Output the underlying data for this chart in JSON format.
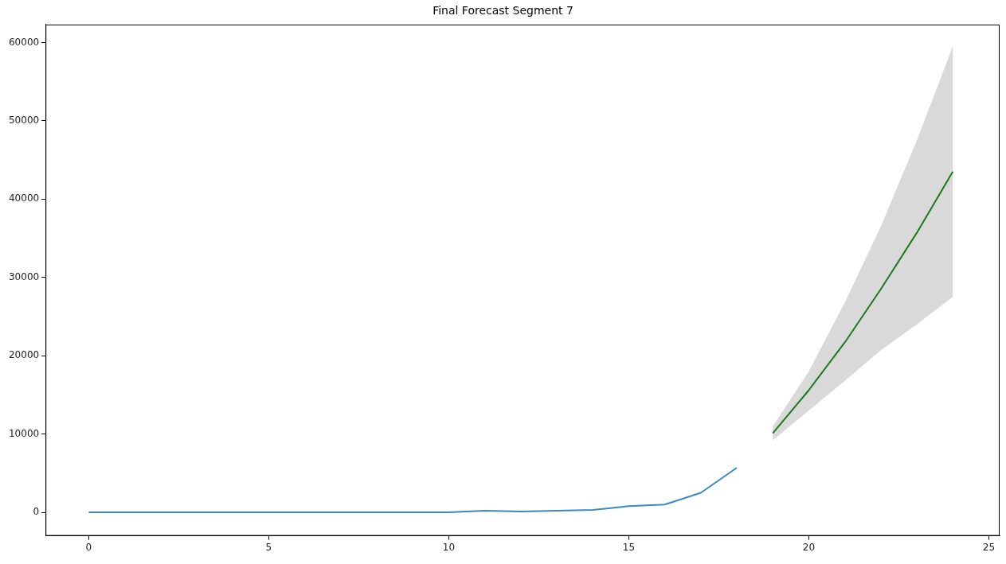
{
  "chart_data": {
    "type": "line",
    "title": "Final Forecast Segment 7",
    "series": [
      {
        "color": "#3a89c2",
        "x": [
          0,
          1,
          2,
          3,
          4,
          5,
          6,
          7,
          8,
          9,
          10,
          11,
          12,
          13,
          14,
          15,
          16,
          17,
          18
        ],
        "values": [
          0,
          0,
          0,
          0,
          0,
          0,
          0,
          0,
          0,
          0,
          0,
          200,
          100,
          200,
          300,
          800,
          1000,
          2500,
          5700
        ]
      },
      {
        "color": "#1a7a1a",
        "x": [
          19,
          20,
          21,
          22,
          23,
          24
        ],
        "values": [
          10100,
          15600,
          21700,
          28500,
          35700,
          43500
        ],
        "lower": [
          9200,
          13000,
          16800,
          20700,
          24000,
          27500
        ],
        "upper": [
          11000,
          18000,
          26800,
          36500,
          47500,
          59500
        ]
      }
    ],
    "xlim": [
      -1.2,
      25.3
    ],
    "xticks": [
      0,
      5,
      10,
      15,
      20,
      25
    ],
    "ylim": [
      -3000,
      62300
    ],
    "yticks": [
      0,
      10000,
      20000,
      30000,
      40000,
      50000,
      60000
    ],
    "grid": false,
    "legend": false,
    "marker": "none",
    "line_style": "solid"
  }
}
